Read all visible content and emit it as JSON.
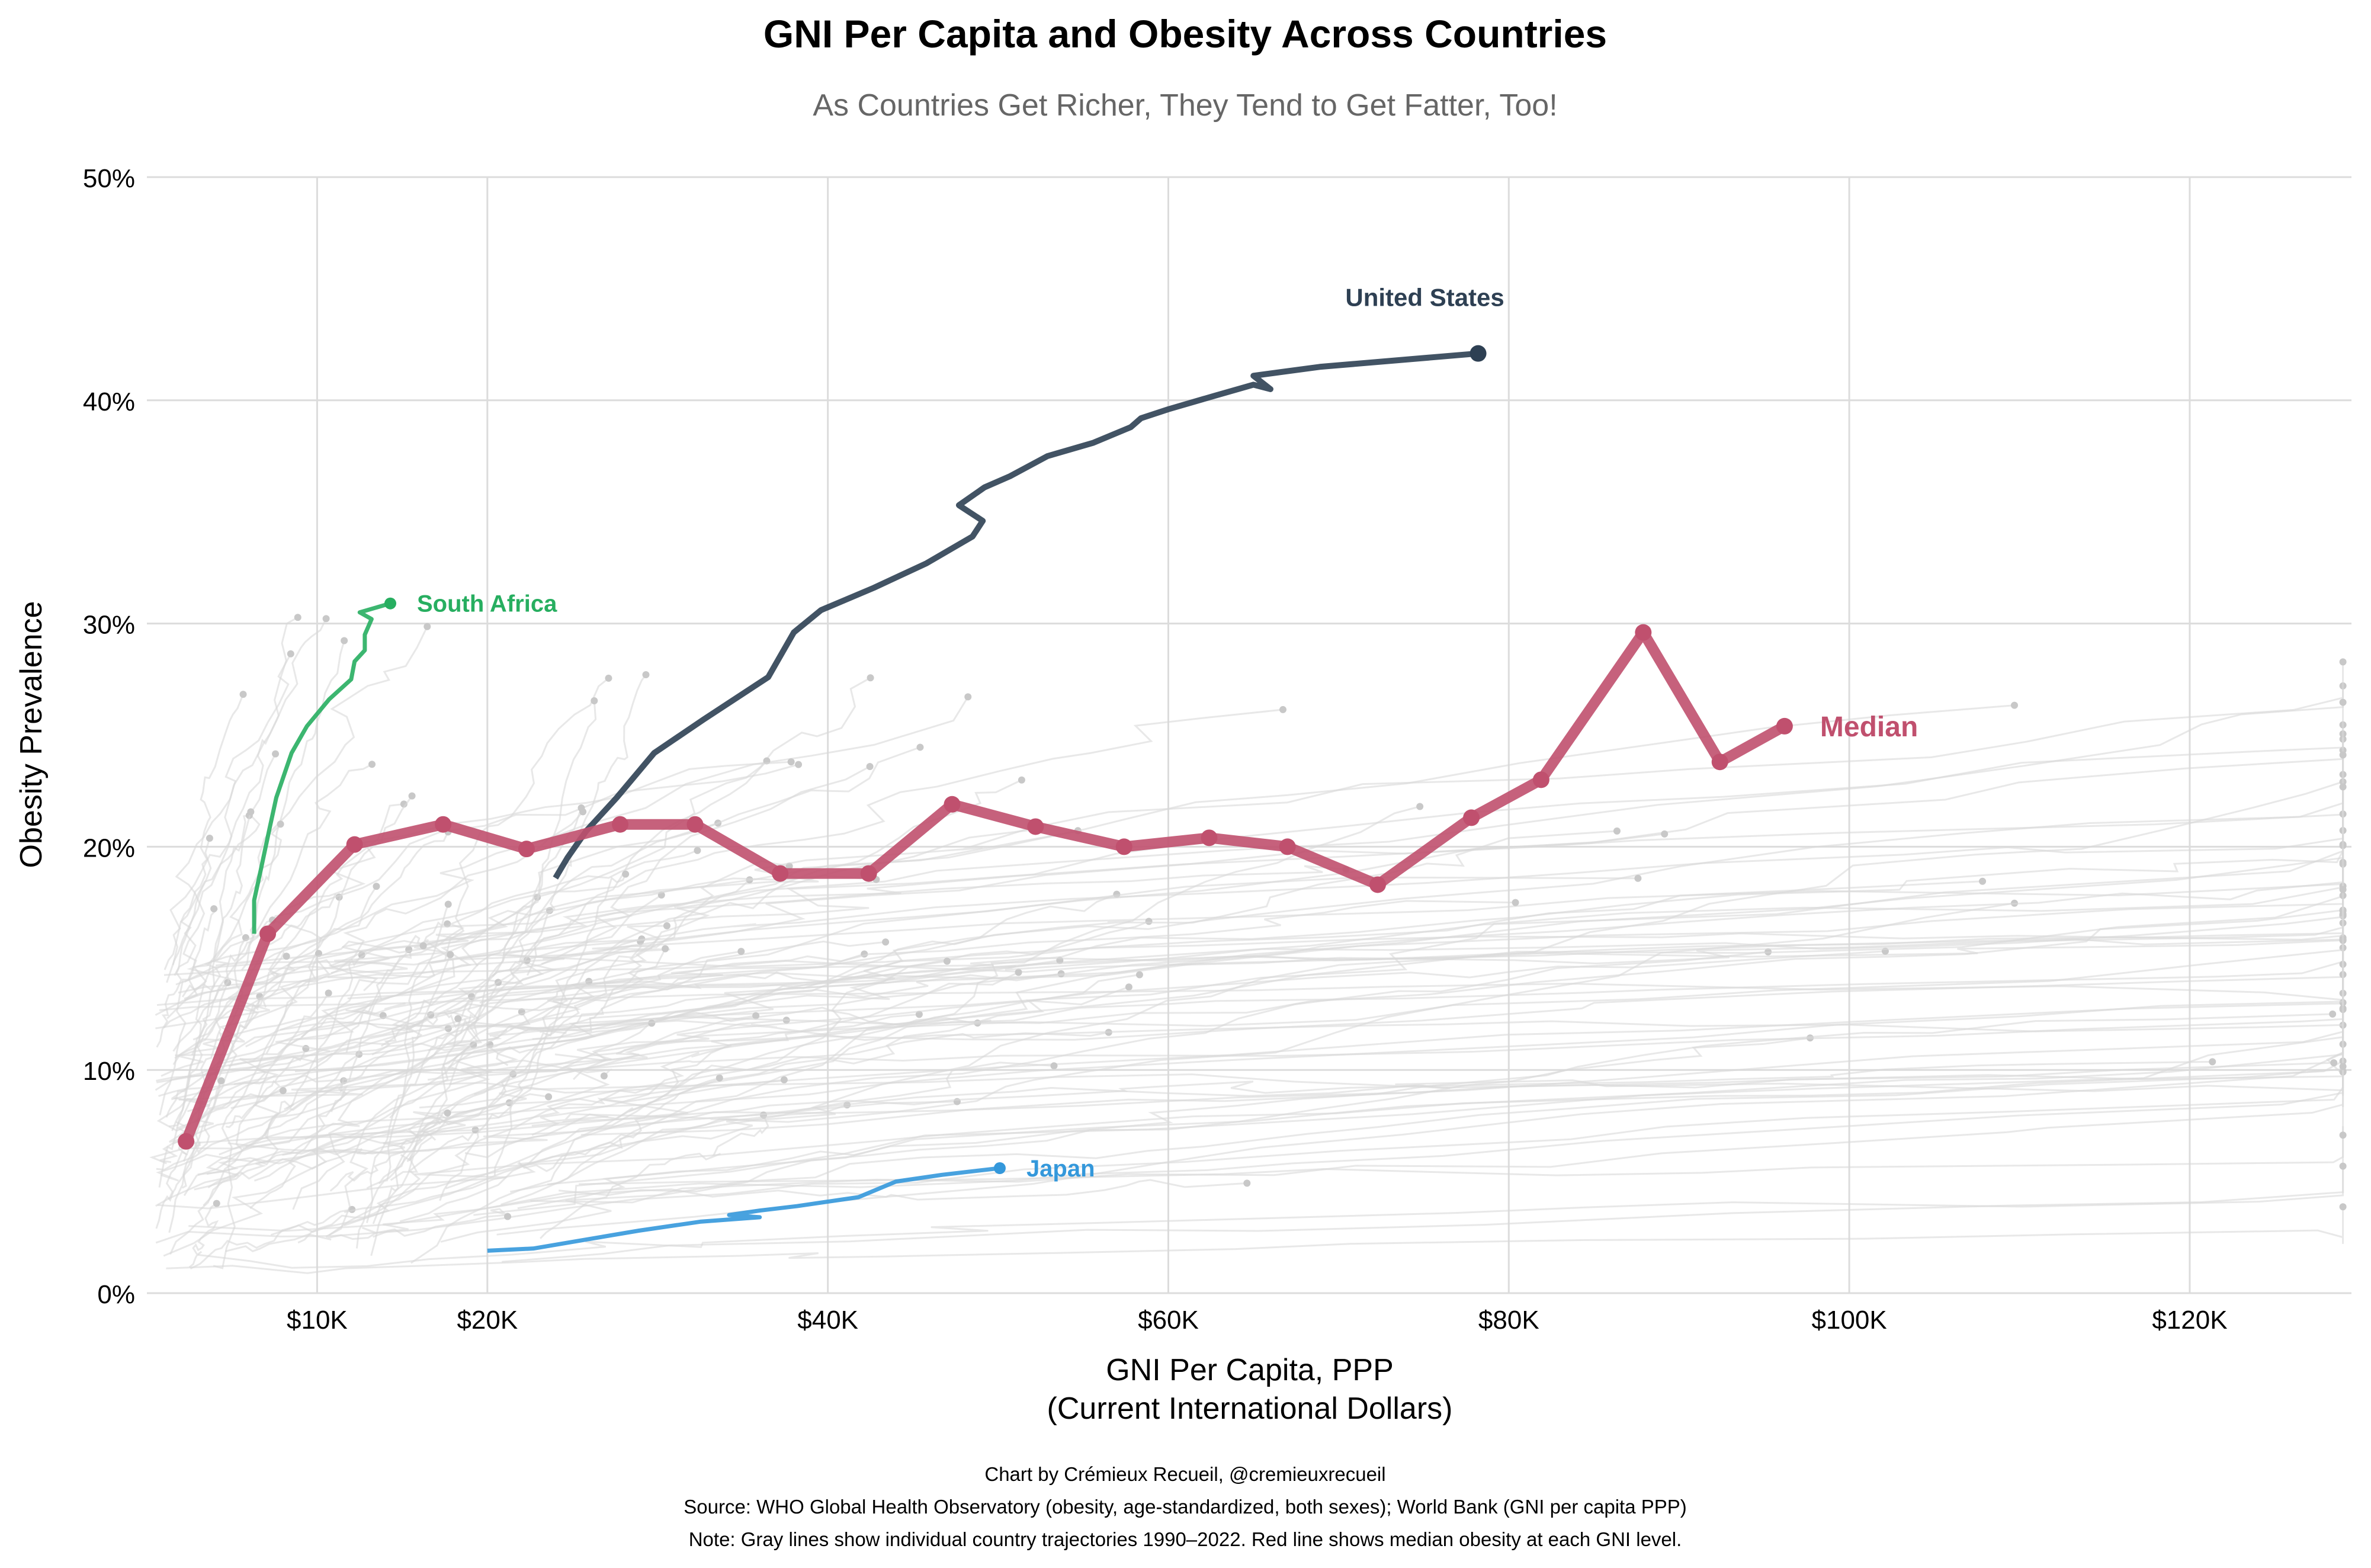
{
  "chart_data": {
    "type": "line",
    "title": "GNI Per Capita and Obesity Across Countries",
    "subtitle": "As Countries Get Richer, They Tend to Get Fatter, Too!",
    "xlabel": "GNI Per Capita, PPP",
    "xlabel2": "(Current International Dollars)",
    "ylabel": "Obesity Prevalence",
    "xlim": [
      0,
      129.5
    ],
    "ylim": [
      0,
      50
    ],
    "grid": true,
    "x_ticks": [
      {
        "v": 10,
        "label": "$10K"
      },
      {
        "v": 20,
        "label": "$20K"
      },
      {
        "v": 40,
        "label": "$40K"
      },
      {
        "v": 60,
        "label": "$60K"
      },
      {
        "v": 80,
        "label": "$80K"
      },
      {
        "v": 100,
        "label": "$100K"
      },
      {
        "v": 120,
        "label": "$120K"
      }
    ],
    "y_ticks": [
      {
        "v": 0,
        "label": "0%"
      },
      {
        "v": 10,
        "label": "10%"
      },
      {
        "v": 20,
        "label": "20%"
      },
      {
        "v": 30,
        "label": "30%"
      },
      {
        "v": 40,
        "label": "40%"
      },
      {
        "v": 50,
        "label": "50%"
      }
    ],
    "series": [
      {
        "name": "Median",
        "color": "#c0506e",
        "x": [
          2.3,
          7.1,
          12.2,
          17.4,
          22.3,
          27.8,
          32.2,
          37.2,
          42.4,
          47.3,
          52.2,
          57.4,
          62.4,
          67.0,
          72.3,
          77.8,
          81.9,
          87.9,
          92.4,
          96.2
        ],
        "y": [
          6.8,
          16.1,
          20.1,
          21.0,
          19.9,
          21.0,
          21.0,
          18.8,
          18.8,
          21.9,
          20.9,
          20.0,
          20.4,
          20.0,
          18.3,
          21.3,
          23.0,
          29.6,
          23.8,
          25.4
        ]
      },
      {
        "name": "United States",
        "color": "#2e4053",
        "x": [
          24.0,
          24.7,
          25.8,
          27.6,
          29.8,
          32.7,
          36.5,
          38.0,
          39.6,
          42.7,
          45.8,
          48.5,
          49.1,
          47.7,
          49.2,
          50.7,
          52.9,
          55.6,
          57.8,
          58.4,
          60.0,
          62.7,
          65.0,
          66.0,
          65.0,
          68.9,
          78.2
        ],
        "y": [
          18.6,
          19.5,
          20.7,
          22.2,
          24.2,
          25.7,
          27.6,
          29.6,
          30.6,
          31.6,
          32.7,
          33.9,
          34.6,
          35.3,
          36.1,
          36.6,
          37.5,
          38.1,
          38.8,
          39.2,
          39.6,
          40.2,
          40.7,
          40.5,
          41.1,
          41.5,
          42.1
        ]
      },
      {
        "name": "South Africa",
        "color": "#27ae60",
        "x": [
          6.3,
          6.3,
          6.7,
          7.2,
          7.6,
          8.5,
          9.4,
          10.7,
          12.0,
          12.2,
          12.8,
          12.8,
          13.2,
          12.5,
          14.3
        ],
        "y": [
          16.1,
          17.6,
          19.0,
          20.8,
          22.2,
          24.2,
          25.4,
          26.6,
          27.5,
          28.3,
          28.8,
          29.5,
          30.2,
          30.5,
          30.9
        ]
      },
      {
        "name": "Japan",
        "color": "#3498db",
        "x": [
          20.0,
          22.7,
          25.8,
          28.9,
          32.5,
          36.0,
          34.2,
          36.0,
          38.2,
          40.9,
          41.8,
          44.0,
          46.7,
          50.1
        ],
        "y": [
          1.9,
          2.0,
          2.4,
          2.8,
          3.2,
          3.4,
          3.5,
          3.7,
          3.9,
          4.2,
          4.3,
          5.0,
          5.3,
          5.6
        ]
      }
    ],
    "background_note": "Gray lines: individual country trajectories",
    "footer": {
      "credit": "Chart by Crémieux Recueil, @cremieuxrecueil",
      "source": "Source: WHO Global Health Observatory (obesity, age-standardized, both sexes); World Bank (GNI per capita PPP)",
      "note": "Note: Gray lines show individual country trajectories 1990–2022. Red line shows median obesity at each GNI level."
    }
  }
}
